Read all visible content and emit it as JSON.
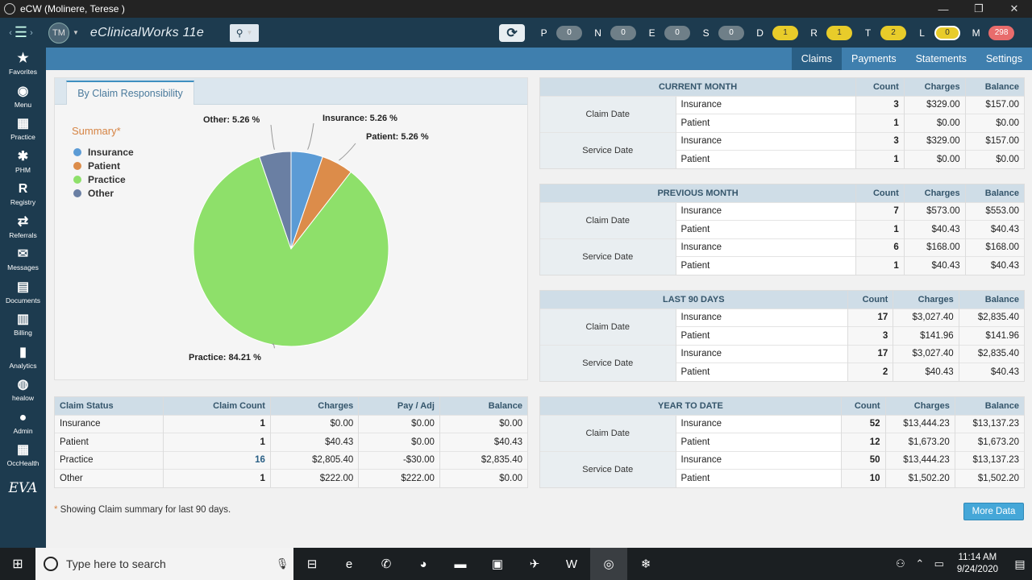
{
  "window": {
    "title": "eCW (Molinere, Terese )",
    "min": "—",
    "max": "❐",
    "close": "✕"
  },
  "appbar": {
    "avatar": "TM",
    "brand": "eClinicalWorks 11e",
    "jellybeans": [
      {
        "letter": "P",
        "count": "0",
        "color": "gray"
      },
      {
        "letter": "N",
        "count": "0",
        "color": "gray"
      },
      {
        "letter": "E",
        "count": "0",
        "color": "gray"
      },
      {
        "letter": "S",
        "count": "0",
        "color": "gray"
      },
      {
        "letter": "D",
        "count": "1",
        "color": "yellow"
      },
      {
        "letter": "R",
        "count": "1",
        "color": "yellow"
      },
      {
        "letter": "T",
        "count": "2",
        "color": "yellow"
      },
      {
        "letter": "L",
        "count": "0",
        "color": "yellow-ring"
      },
      {
        "letter": "M",
        "count": "298",
        "color": "red"
      }
    ]
  },
  "sidebar": [
    {
      "icon": "★",
      "label": "Favorites",
      "icon_name": "star-icon"
    },
    {
      "icon": "◉",
      "label": "Menu",
      "icon_name": "menu-icon"
    },
    {
      "icon": "▦",
      "label": "Practice",
      "icon_name": "practice-icon"
    },
    {
      "icon": "✱",
      "label": "PHM",
      "icon_name": "phm-icon"
    },
    {
      "icon": "R",
      "label": "Registry",
      "icon_name": "registry-icon"
    },
    {
      "icon": "⇄",
      "label": "Referrals",
      "icon_name": "referrals-icon"
    },
    {
      "icon": "✉",
      "label": "Messages",
      "icon_name": "messages-icon"
    },
    {
      "icon": "▤",
      "label": "Documents",
      "icon_name": "documents-icon"
    },
    {
      "icon": "▥",
      "label": "Billing",
      "icon_name": "billing-icon"
    },
    {
      "icon": "▮",
      "label": "Analytics",
      "icon_name": "analytics-icon"
    },
    {
      "icon": "◍",
      "label": "healow",
      "icon_name": "healow-icon"
    },
    {
      "icon": "●",
      "label": "Admin",
      "icon_name": "admin-icon"
    },
    {
      "icon": "▦",
      "label": "OccHealth",
      "icon_name": "occhealth-icon"
    },
    {
      "icon": "EVA",
      "label": "",
      "icon_name": "eva-icon"
    }
  ],
  "tabs": [
    "Claims",
    "Payments",
    "Statements",
    "Settings"
  ],
  "active_tab": "Claims",
  "summary_panel": {
    "tab_label": "By Claim Responsibility",
    "summary_title": "Summary",
    "summary_asterisk": "*",
    "legend": [
      {
        "name": "Insurance",
        "color": "#5b9bd5"
      },
      {
        "name": "Patient",
        "color": "#dc8c4a"
      },
      {
        "name": "Practice",
        "color": "#8ee06a"
      },
      {
        "name": "Other",
        "color": "#6a7fa3"
      }
    ]
  },
  "chart_data": {
    "type": "pie",
    "slices": [
      {
        "name": "Insurance",
        "value": 5.26,
        "label": "Insurance: 5.26 %",
        "color": "#5b9bd5"
      },
      {
        "name": "Patient",
        "value": 5.26,
        "label": "Patient: 5.26 %",
        "color": "#dc8c4a"
      },
      {
        "name": "Practice",
        "value": 84.21,
        "label": "Practice: 84.21 %",
        "color": "#8ee06a"
      },
      {
        "name": "Other",
        "value": 5.26,
        "label": "Other: 5.26 %",
        "color": "#6a7fa3"
      }
    ]
  },
  "claim_status": {
    "headers": [
      "Claim Status",
      "Claim Count",
      "Charges",
      "Pay / Adj",
      "Balance"
    ],
    "rows": [
      [
        "Insurance",
        "1",
        "$0.00",
        "$0.00",
        "$0.00"
      ],
      [
        "Patient",
        "1",
        "$40.43",
        "$0.00",
        "$40.43"
      ],
      [
        "Practice",
        "16",
        "$2,805.40",
        "-$30.00",
        "$2,835.40"
      ],
      [
        "Other",
        "1",
        "$222.00",
        "$222.00",
        "$0.00"
      ]
    ]
  },
  "period_tables": [
    {
      "title": "CURRENT MONTH",
      "headers": [
        "Count",
        "Charges",
        "Balance"
      ],
      "groups": [
        {
          "label": "Claim Date",
          "rows": [
            [
              "Insurance",
              "3",
              "$329.00",
              "$157.00"
            ],
            [
              "Patient",
              "1",
              "$0.00",
              "$0.00"
            ]
          ]
        },
        {
          "label": "Service Date",
          "rows": [
            [
              "Insurance",
              "3",
              "$329.00",
              "$157.00"
            ],
            [
              "Patient",
              "1",
              "$0.00",
              "$0.00"
            ]
          ]
        }
      ]
    },
    {
      "title": "PREVIOUS MONTH",
      "headers": [
        "Count",
        "Charges",
        "Balance"
      ],
      "groups": [
        {
          "label": "Claim Date",
          "rows": [
            [
              "Insurance",
              "7",
              "$573.00",
              "$553.00"
            ],
            [
              "Patient",
              "1",
              "$40.43",
              "$40.43"
            ]
          ]
        },
        {
          "label": "Service Date",
          "rows": [
            [
              "Insurance",
              "6",
              "$168.00",
              "$168.00"
            ],
            [
              "Patient",
              "1",
              "$40.43",
              "$40.43"
            ]
          ]
        }
      ]
    },
    {
      "title": "LAST 90 DAYS",
      "headers": [
        "Count",
        "Charges",
        "Balance"
      ],
      "groups": [
        {
          "label": "Claim Date",
          "rows": [
            [
              "Insurance",
              "17",
              "$3,027.40",
              "$2,835.40"
            ],
            [
              "Patient",
              "3",
              "$141.96",
              "$141.96"
            ]
          ]
        },
        {
          "label": "Service Date",
          "rows": [
            [
              "Insurance",
              "17",
              "$3,027.40",
              "$2,835.40"
            ],
            [
              "Patient",
              "2",
              "$40.43",
              "$40.43"
            ]
          ]
        }
      ]
    },
    {
      "title": "YEAR TO DATE",
      "headers": [
        "Count",
        "Charges",
        "Balance"
      ],
      "groups": [
        {
          "label": "Claim Date",
          "rows": [
            [
              "Insurance",
              "52",
              "$13,444.23",
              "$13,137.23"
            ],
            [
              "Patient",
              "12",
              "$1,673.20",
              "$1,673.20"
            ]
          ]
        },
        {
          "label": "Service Date",
          "rows": [
            [
              "Insurance",
              "50",
              "$13,444.23",
              "$13,137.23"
            ],
            [
              "Patient",
              "10",
              "$1,502.20",
              "$1,502.20"
            ]
          ]
        }
      ]
    }
  ],
  "footer_note": {
    "asterisk": "*",
    "text": " Showing Claim summary for last 90 days."
  },
  "more_data_label": "More Data",
  "taskbar": {
    "search_placeholder": "Type here to search",
    "time": "11:14 AM",
    "date": "9/24/2020",
    "apps": [
      {
        "icon": "⊟",
        "name": "task-view-icon"
      },
      {
        "icon": "e",
        "name": "edge-icon"
      },
      {
        "icon": "✆",
        "name": "phone-app-icon"
      },
      {
        "icon": "◕",
        "name": "chrome-icon"
      },
      {
        "icon": "▬",
        "name": "file-explorer-icon"
      },
      {
        "icon": "▣",
        "name": "app-icon"
      },
      {
        "icon": "✈",
        "name": "snipping-tool-icon"
      },
      {
        "icon": "W",
        "name": "word-icon"
      },
      {
        "icon": "◎",
        "name": "ecw-taskbar-icon"
      },
      {
        "icon": "❄",
        "name": "snowflake-app-icon"
      }
    ]
  }
}
